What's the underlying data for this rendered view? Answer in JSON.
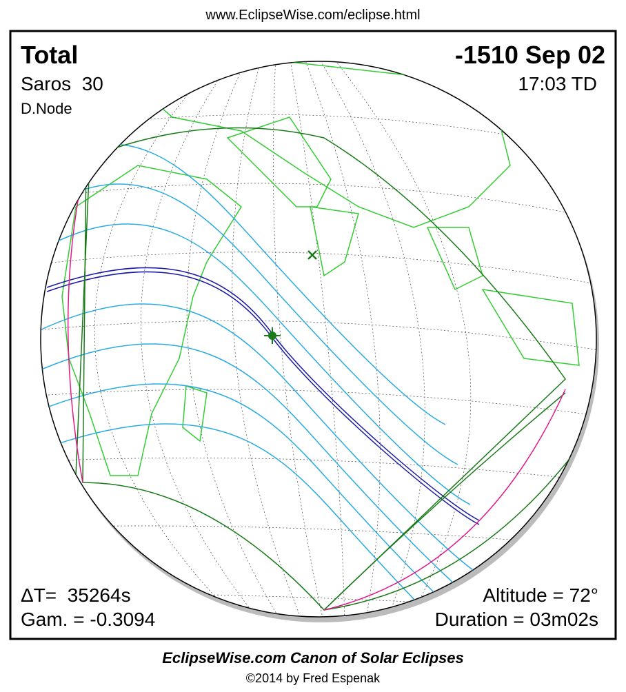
{
  "header": {
    "url": "www.EclipseWise.com/eclipse.html"
  },
  "eclipse": {
    "type": "Total",
    "date": "-1510 Sep 02",
    "saros": "Saros  30",
    "time": "17:03 TD",
    "node": "D.Node",
    "delta_t": "ΔT=  35264s",
    "gamma": "Gam. = -0.3094",
    "altitude": "Altitude = 72°",
    "duration": "Duration = 03m02s"
  },
  "footer": {
    "title": "EclipseWise.com Canon of Solar Eclipses",
    "copyright": "©2014 by Fred Espenak"
  }
}
